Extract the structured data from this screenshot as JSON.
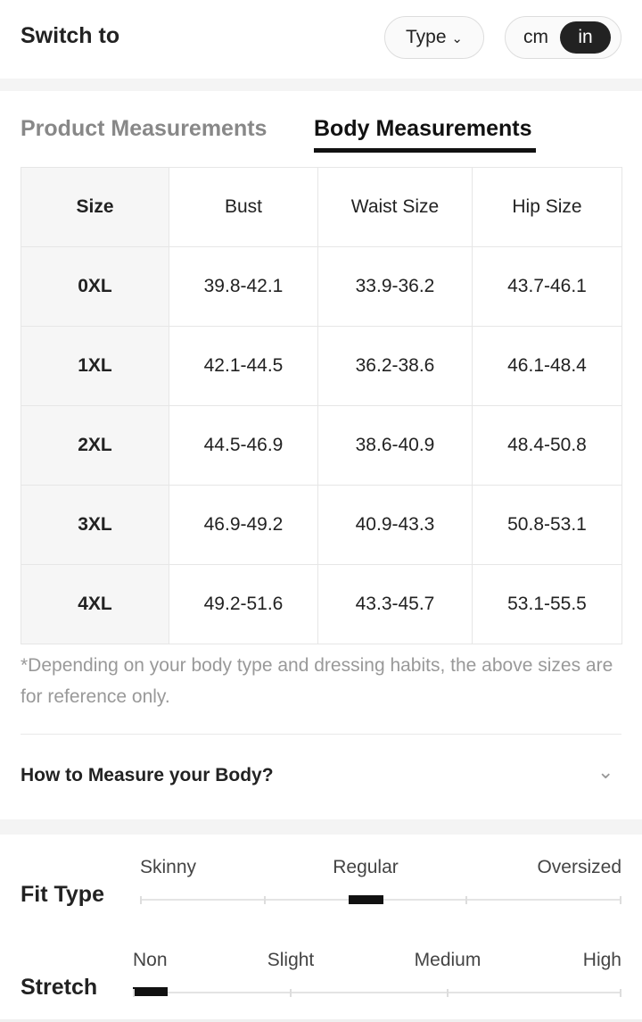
{
  "header": {
    "title": "Switch to",
    "type_button": "Type",
    "units": [
      "cm",
      "in"
    ]
  },
  "tabs": [
    "Product Measurements",
    "Body Measurements"
  ],
  "table": {
    "columns": [
      "Size",
      "Bust",
      "Waist Size",
      "Hip Size"
    ],
    "rows": [
      [
        "0XL",
        "39.8-42.1",
        "33.9-36.2",
        "43.7-46.1"
      ],
      [
        "1XL",
        "42.1-44.5",
        "36.2-38.6",
        "46.1-48.4"
      ],
      [
        "2XL",
        "44.5-46.9",
        "38.6-40.9",
        "48.4-50.8"
      ],
      [
        "3XL",
        "46.9-49.2",
        "40.9-43.3",
        "50.8-53.1"
      ],
      [
        "4XL",
        "49.2-51.6",
        "43.3-45.7",
        "53.1-55.5"
      ]
    ]
  },
  "note": "*Depending on your body type and dressing habits, the above sizes are for reference only.",
  "accordion": "How to Measure your Body?",
  "fit_type": {
    "label": "Fit Type",
    "scale": [
      "Skinny",
      "Regular",
      "Oversized"
    ]
  },
  "stretch": {
    "label": "Stretch",
    "scale": [
      "Non",
      "Slight",
      "Medium",
      "High"
    ]
  }
}
